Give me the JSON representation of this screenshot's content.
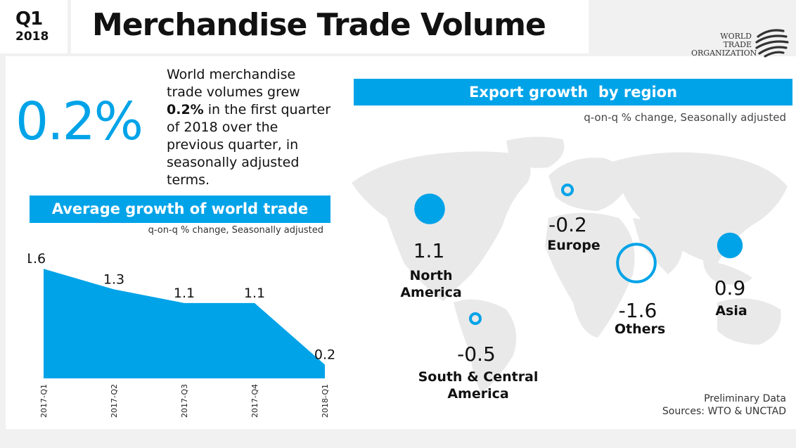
{
  "header": {
    "quarter": "Q1",
    "year": "2018",
    "title": "Merchandise Trade Volume",
    "logo_line1": "World Trade",
    "logo_line2": "Organization"
  },
  "headline": {
    "value": "0.2%",
    "text_before": "World merchandise trade volumes grew ",
    "text_bold": "0.2%",
    "text_after": " in the first quarter of 2018 over the previous quarter, in seasonally adjusted terms."
  },
  "colors": {
    "accent": "#00a3e8",
    "map": "#e9e9e9"
  },
  "chart_data": [
    {
      "type": "area",
      "title": "Average growth of world trade",
      "subtitle": "q-on-q % change, Seasonally adjusted",
      "categories": [
        "2017-Q1",
        "2017-Q2",
        "2017-Q3",
        "2017-Q4",
        "2018-Q1"
      ],
      "values": [
        1.6,
        1.3,
        1.1,
        1.1,
        0.2
      ],
      "value_labels": [
        "1.6",
        "1.3",
        "1.1",
        "1.1",
        "0.2"
      ],
      "ylim": [
        0,
        1.9
      ],
      "grid": false,
      "color": "#00a3e8"
    },
    {
      "type": "bubble-map",
      "title": "Export growth  by region",
      "subtitle": "q-on-q % change, Seasonally adjusted",
      "regions": [
        {
          "name": "North America",
          "label": "North\nAmerica",
          "value": 1.1,
          "value_label": "1.1",
          "filled": true
        },
        {
          "name": "Europe",
          "label": "Europe",
          "value": -0.2,
          "value_label": "-0.2",
          "filled": false
        },
        {
          "name": "South & Central America",
          "label": "South & Central\nAmerica",
          "value": -0.5,
          "value_label": "-0.5",
          "filled": false
        },
        {
          "name": "Others",
          "label": "Others",
          "value": -1.6,
          "value_label": "-1.6",
          "filled": false
        },
        {
          "name": "Asia",
          "label": "Asia",
          "value": 0.9,
          "value_label": "0.9",
          "filled": true
        }
      ]
    }
  ],
  "footer": {
    "note": "Preliminary Data",
    "sources": "Sources: WTO & UNCTAD"
  }
}
